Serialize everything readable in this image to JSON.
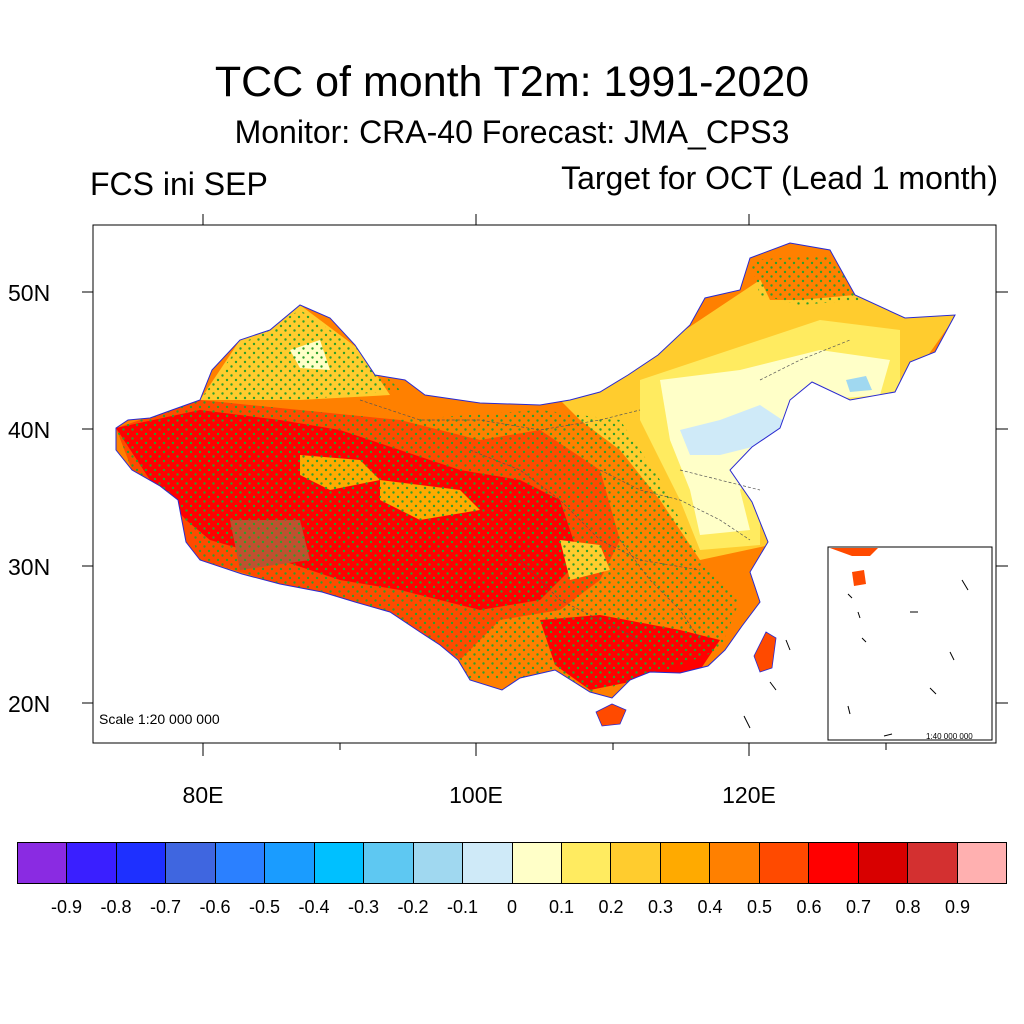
{
  "title": "TCC of month T2m: 1991-2020",
  "subtitle": "Monitor: CRA-40   Forecast: JMA_CPS3",
  "left_label": "FCS ini SEP",
  "right_label": "Target for OCT (Lead 1 month)",
  "map": {
    "region": "China",
    "lon_range": [
      72,
      138
    ],
    "lat_range": [
      17,
      55
    ],
    "y_ticks": [
      "50N",
      "40N",
      "30N",
      "20N"
    ],
    "x_ticks": [
      "80E",
      "100E",
      "120E"
    ],
    "scale_main": "Scale 1:20 000 000",
    "scale_inset": "1:40 000 000",
    "stipple_color": "#2ca02c"
  },
  "colorbar": {
    "colors": [
      "#8a2be2",
      "#3a1fff",
      "#1e30ff",
      "#3f66e0",
      "#2b80ff",
      "#1a9cff",
      "#00c0ff",
      "#5ec8f2",
      "#a0d8f0",
      "#cfeaf8",
      "#ffffc8",
      "#ffeb60",
      "#ffcc2e",
      "#ffaa00",
      "#ff8000",
      "#ff4a00",
      "#ff0000",
      "#d80000",
      "#d33030",
      "#ffb0b0"
    ],
    "labels": [
      "-0.9",
      "-0.8",
      "-0.7",
      "-0.6",
      "-0.5",
      "-0.4",
      "-0.3",
      "-0.2",
      "-0.1",
      "0",
      "0.1",
      "0.2",
      "0.3",
      "0.4",
      "0.5",
      "0.6",
      "0.7",
      "0.8",
      "0.9"
    ]
  }
}
